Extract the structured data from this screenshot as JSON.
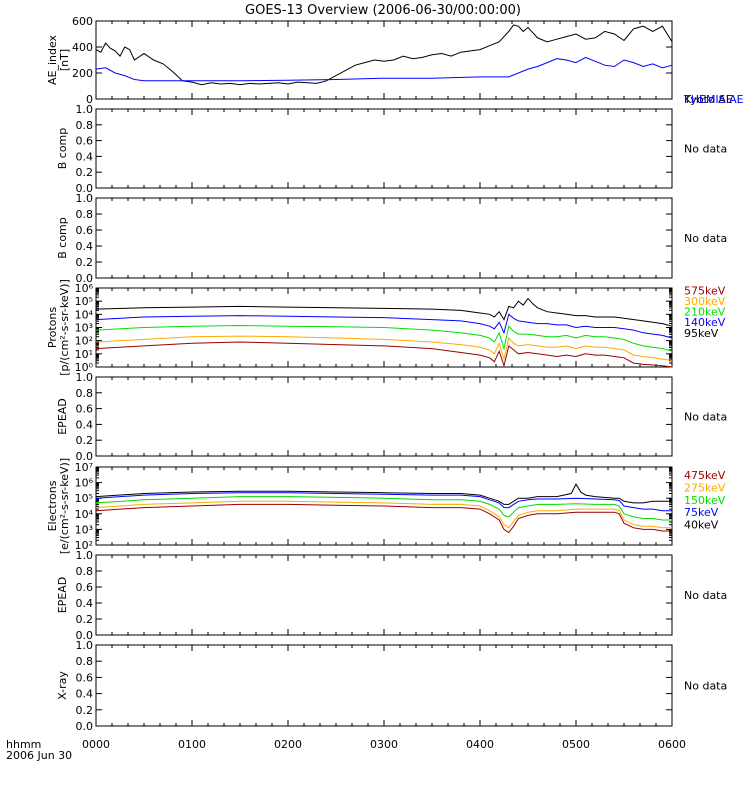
{
  "title": "GOES-13 Overview (2006-06-30/00:00:00)",
  "footer": {
    "time_label": "hhmm",
    "date_label": "2006 Jun 30"
  },
  "colors": {
    "black": "#000000",
    "blue": "#0000ff",
    "green": "#00dd00",
    "orange": "#ffaa00",
    "darkred": "#990000"
  },
  "chart_data": [
    {
      "type": "line",
      "ylabel": "AE_index",
      "unit": "[nT]",
      "x_ticks": [
        "0000",
        "0100",
        "0200",
        "0300",
        "0400",
        "0500",
        "0600"
      ],
      "xlim": [
        0,
        6
      ],
      "ylim": [
        0,
        600
      ],
      "y_ticks": [
        "0",
        "200",
        "400",
        "600"
      ],
      "y_tick_values": [
        0,
        200,
        400,
        600
      ],
      "series": [
        {
          "name": "Kyoto AE",
          "color": "#000000",
          "x": [
            0,
            0.05,
            0.1,
            0.15,
            0.2,
            0.25,
            0.3,
            0.35,
            0.4,
            0.5,
            0.6,
            0.7,
            0.8,
            0.9,
            1.0,
            1.1,
            1.2,
            1.3,
            1.4,
            1.5,
            1.6,
            1.7,
            1.8,
            1.9,
            2.0,
            2.1,
            2.2,
            2.3,
            2.4,
            2.5,
            2.6,
            2.7,
            2.8,
            2.9,
            3.0,
            3.1,
            3.2,
            3.3,
            3.4,
            3.5,
            3.6,
            3.7,
            3.8,
            3.9,
            4.0,
            4.1,
            4.2,
            4.3,
            4.35,
            4.4,
            4.45,
            4.5,
            4.55,
            4.6,
            4.7,
            4.8,
            4.9,
            5.0,
            5.1,
            5.2,
            5.3,
            5.4,
            5.5,
            5.6,
            5.7,
            5.8,
            5.9,
            6.0
          ],
          "y": [
            380,
            360,
            430,
            390,
            370,
            330,
            400,
            380,
            300,
            350,
            300,
            270,
            210,
            140,
            130,
            110,
            125,
            115,
            120,
            110,
            120,
            115,
            120,
            125,
            115,
            130,
            125,
            120,
            140,
            180,
            220,
            260,
            280,
            300,
            290,
            300,
            330,
            310,
            320,
            340,
            350,
            330,
            360,
            370,
            380,
            410,
            440,
            520,
            570,
            560,
            520,
            550,
            510,
            470,
            440,
            460,
            480,
            500,
            460,
            470,
            520,
            500,
            450,
            540,
            560,
            520,
            560,
            440
          ],
          "label_pos": 0.8
        },
        {
          "name": "THEMIS AE",
          "color": "#0000ff",
          "x": [
            0,
            0.1,
            0.2,
            0.3,
            0.4,
            0.5,
            1.0,
            1.5,
            2.0,
            2.5,
            3.0,
            3.5,
            4.0,
            4.3,
            4.4,
            4.5,
            4.6,
            4.7,
            4.8,
            4.9,
            5.0,
            5.1,
            5.2,
            5.3,
            5.4,
            5.5,
            5.6,
            5.7,
            5.8,
            5.9,
            6.0
          ],
          "y": [
            230,
            240,
            200,
            180,
            150,
            140,
            140,
            140,
            145,
            150,
            160,
            160,
            170,
            170,
            200,
            230,
            250,
            280,
            310,
            300,
            280,
            320,
            290,
            260,
            250,
            300,
            280,
            250,
            270,
            240,
            260
          ],
          "label_pos": 0.25
        }
      ]
    },
    {
      "type": "line",
      "ylabel": "B comp",
      "xlim": [
        0,
        6
      ],
      "ylim": [
        0,
        1
      ],
      "y_ticks": [
        "0.0",
        "0.2",
        "0.4",
        "0.6",
        "0.8",
        "1.0"
      ],
      "y_tick_values": [
        0,
        0.2,
        0.4,
        0.6,
        0.8,
        1.0
      ],
      "note": "No data",
      "series": []
    },
    {
      "type": "line",
      "ylabel": "B comp",
      "xlim": [
        0,
        6
      ],
      "ylim": [
        0,
        1
      ],
      "y_ticks": [
        "0.0",
        "0.2",
        "0.4",
        "0.6",
        "0.8",
        "1.0"
      ],
      "y_tick_values": [
        0,
        0.2,
        0.4,
        0.6,
        0.8,
        1.0
      ],
      "note": "No data",
      "series": []
    },
    {
      "type": "line",
      "ylabel": "Protons",
      "unit": "[p/(cm²-s-sr-keV)]",
      "xlim": [
        0,
        6
      ],
      "ylim": [
        0,
        6
      ],
      "log": true,
      "y_ticks": [
        "10⁰",
        "10¹",
        "10²",
        "10³",
        "10⁴",
        "10⁵",
        "10⁶"
      ],
      "y_tick_values": [
        0,
        1,
        2,
        3,
        4,
        5,
        6
      ],
      "series": [
        {
          "name": "575keV",
          "color": "#990000",
          "x": [
            0,
            0.5,
            1,
            1.5,
            2,
            2.5,
            3,
            3.5,
            3.8,
            4.0,
            4.1,
            4.15,
            4.2,
            4.25,
            4.3,
            4.35,
            4.4,
            4.5,
            4.6,
            4.7,
            4.8,
            4.9,
            5.0,
            5.1,
            5.2,
            5.3,
            5.4,
            5.5,
            5.6,
            5.7,
            5.8,
            5.9,
            6.0
          ],
          "y": [
            1.4,
            1.6,
            1.8,
            1.9,
            1.8,
            1.7,
            1.6,
            1.4,
            1.1,
            0.9,
            0.7,
            0.4,
            1.2,
            0.1,
            1.6,
            1.3,
            1.0,
            1.1,
            1.0,
            0.9,
            0.8,
            0.9,
            0.8,
            1.0,
            0.9,
            0.9,
            0.8,
            0.7,
            0.3,
            0.2,
            0.15,
            0.1,
            0.0
          ],
          "label_pos": 5.8
        },
        {
          "name": "300keV",
          "color": "#ffaa00",
          "x": [
            0,
            0.5,
            1,
            1.5,
            2,
            2.5,
            3,
            3.5,
            3.8,
            4.0,
            4.1,
            4.15,
            4.2,
            4.25,
            4.3,
            4.35,
            4.4,
            4.5,
            4.6,
            4.7,
            4.8,
            4.9,
            5.0,
            5.1,
            5.2,
            5.3,
            5.4,
            5.5,
            5.6,
            5.7,
            5.8,
            5.9,
            6.0
          ],
          "y": [
            1.9,
            2.1,
            2.3,
            2.35,
            2.3,
            2.2,
            2.1,
            1.9,
            1.7,
            1.5,
            1.3,
            1.0,
            1.8,
            0.6,
            2.2,
            1.8,
            1.6,
            1.7,
            1.6,
            1.5,
            1.5,
            1.6,
            1.4,
            1.6,
            1.5,
            1.5,
            1.4,
            1.3,
            0.9,
            0.8,
            0.7,
            0.6,
            0.5
          ],
          "label_pos": 5.0
        },
        {
          "name": "210keV",
          "color": "#00dd00",
          "x": [
            0,
            0.5,
            1,
            1.5,
            2,
            2.5,
            3,
            3.5,
            3.8,
            4.0,
            4.1,
            4.15,
            4.2,
            4.25,
            4.3,
            4.35,
            4.4,
            4.5,
            4.6,
            4.7,
            4.8,
            4.9,
            5.0,
            5.1,
            5.2,
            5.3,
            5.4,
            5.5,
            5.6,
            5.7,
            5.8,
            5.9,
            6.0
          ],
          "y": [
            2.8,
            3.0,
            3.1,
            3.15,
            3.1,
            3.05,
            3.0,
            2.8,
            2.6,
            2.4,
            2.2,
            1.9,
            2.6,
            1.4,
            3.1,
            2.7,
            2.5,
            2.5,
            2.4,
            2.3,
            2.3,
            2.4,
            2.2,
            2.4,
            2.3,
            2.3,
            2.2,
            2.1,
            1.8,
            1.6,
            1.5,
            1.4,
            1.2
          ],
          "label_pos": 4.2
        },
        {
          "name": "140keV",
          "color": "#0000ff",
          "x": [
            0,
            0.5,
            1,
            1.5,
            2,
            2.5,
            3,
            3.5,
            3.8,
            4.0,
            4.1,
            4.15,
            4.2,
            4.25,
            4.3,
            4.35,
            4.4,
            4.5,
            4.6,
            4.7,
            4.8,
            4.9,
            5.0,
            5.1,
            5.2,
            5.3,
            5.4,
            5.5,
            5.6,
            5.7,
            5.8,
            5.9,
            6.0
          ],
          "y": [
            3.6,
            3.8,
            3.85,
            3.9,
            3.85,
            3.8,
            3.75,
            3.6,
            3.5,
            3.3,
            3.1,
            2.9,
            3.4,
            2.6,
            4.0,
            3.7,
            3.5,
            3.4,
            3.3,
            3.3,
            3.2,
            3.2,
            3.0,
            3.1,
            3.0,
            3.0,
            3.0,
            2.9,
            2.8,
            2.6,
            2.5,
            2.4,
            2.2
          ],
          "label_pos": 3.4
        },
        {
          "name": "95keV",
          "color": "#000000",
          "x": [
            0,
            0.5,
            1,
            1.5,
            2,
            2.5,
            3,
            3.5,
            3.8,
            4.0,
            4.1,
            4.15,
            4.2,
            4.25,
            4.3,
            4.35,
            4.4,
            4.45,
            4.5,
            4.55,
            4.6,
            4.7,
            4.8,
            4.9,
            5.0,
            5.1,
            5.2,
            5.3,
            5.4,
            5.5,
            5.6,
            5.7,
            5.8,
            5.9,
            6.0
          ],
          "y": [
            4.4,
            4.5,
            4.55,
            4.6,
            4.55,
            4.5,
            4.45,
            4.4,
            4.3,
            4.1,
            4.0,
            3.8,
            4.2,
            3.6,
            4.6,
            4.5,
            5.0,
            4.7,
            5.2,
            4.8,
            4.5,
            4.2,
            4.1,
            4.0,
            3.9,
            3.9,
            3.8,
            3.8,
            3.8,
            3.7,
            3.6,
            3.5,
            3.4,
            3.3,
            3.1
          ],
          "label_pos": 2.6
        }
      ]
    },
    {
      "type": "line",
      "ylabel": "EPEAD",
      "xlim": [
        0,
        6
      ],
      "ylim": [
        0,
        1
      ],
      "y_ticks": [
        "0.0",
        "0.2",
        "0.4",
        "0.6",
        "0.8",
        "1.0"
      ],
      "y_tick_values": [
        0,
        0.2,
        0.4,
        0.6,
        0.8,
        1.0
      ],
      "note": "No data",
      "series": []
    },
    {
      "type": "line",
      "ylabel": "Electrons",
      "unit": "[e/(cm²-s-sr-keV)]",
      "xlim": [
        0,
        6
      ],
      "ylim": [
        2,
        7
      ],
      "log": true,
      "y_ticks": [
        "10²",
        "10³",
        "10⁴",
        "10⁵",
        "10⁶",
        "10⁷"
      ],
      "y_tick_values": [
        2,
        3,
        4,
        5,
        6,
        7
      ],
      "series": [
        {
          "name": "475keV",
          "color": "#990000",
          "x": [
            0,
            0.5,
            1,
            1.5,
            2,
            2.5,
            3,
            3.5,
            3.8,
            4.0,
            4.1,
            4.2,
            4.25,
            4.3,
            4.35,
            4.4,
            4.5,
            4.6,
            4.8,
            5.0,
            5.2,
            5.4,
            5.45,
            5.5,
            5.6,
            5.7,
            5.8,
            5.9,
            6.0
          ],
          "y": [
            4.2,
            4.4,
            4.5,
            4.6,
            4.6,
            4.55,
            4.5,
            4.4,
            4.4,
            4.3,
            4.0,
            3.6,
            3.0,
            2.8,
            3.2,
            3.7,
            3.9,
            4.0,
            4.0,
            4.1,
            4.1,
            4.1,
            4.0,
            3.4,
            3.1,
            3.0,
            3.0,
            2.9,
            2.9
          ],
          "label_pos": 6.5
        },
        {
          "name": "275keV",
          "color": "#ffaa00",
          "x": [
            0,
            0.5,
            1,
            1.5,
            2,
            2.5,
            3,
            3.5,
            3.8,
            4.0,
            4.1,
            4.2,
            4.25,
            4.3,
            4.35,
            4.4,
            4.5,
            4.6,
            4.8,
            5.0,
            5.2,
            5.4,
            5.45,
            5.5,
            5.6,
            5.7,
            5.8,
            5.9,
            6.0
          ],
          "y": [
            4.4,
            4.6,
            4.7,
            4.8,
            4.8,
            4.75,
            4.7,
            4.6,
            4.6,
            4.5,
            4.2,
            3.8,
            3.3,
            3.1,
            3.5,
            3.9,
            4.1,
            4.2,
            4.2,
            4.3,
            4.3,
            4.3,
            4.2,
            3.6,
            3.3,
            3.2,
            3.2,
            3.1,
            3.1
          ],
          "label_pos": 5.7
        },
        {
          "name": "150keV",
          "color": "#00dd00",
          "x": [
            0,
            0.5,
            1,
            1.5,
            2,
            2.5,
            3,
            3.5,
            3.8,
            4.0,
            4.1,
            4.2,
            4.25,
            4.3,
            4.35,
            4.4,
            4.5,
            4.6,
            4.8,
            5.0,
            5.2,
            5.4,
            5.45,
            5.5,
            5.6,
            5.7,
            5.8,
            5.9,
            6.0
          ],
          "y": [
            4.7,
            4.9,
            5.0,
            5.1,
            5.1,
            5.05,
            5.0,
            4.9,
            4.9,
            4.8,
            4.6,
            4.3,
            3.9,
            3.8,
            4.1,
            4.4,
            4.5,
            4.6,
            4.6,
            4.65,
            4.6,
            4.6,
            4.5,
            4.0,
            3.8,
            3.7,
            3.7,
            3.6,
            3.6
          ],
          "label_pos": 4.9
        },
        {
          "name": "75keV",
          "color": "#0000ff",
          "x": [
            0,
            0.5,
            1,
            1.5,
            2,
            2.5,
            3,
            3.5,
            3.8,
            4.0,
            4.1,
            4.2,
            4.25,
            4.3,
            4.35,
            4.4,
            4.5,
            4.6,
            4.8,
            5.0,
            5.2,
            5.4,
            5.45,
            5.5,
            5.6,
            5.7,
            5.8,
            5.9,
            6.0
          ],
          "y": [
            5.0,
            5.2,
            5.3,
            5.35,
            5.35,
            5.3,
            5.25,
            5.2,
            5.2,
            5.1,
            4.9,
            4.7,
            4.4,
            4.4,
            4.6,
            4.8,
            4.9,
            4.95,
            4.95,
            5.0,
            4.95,
            4.9,
            4.85,
            4.5,
            4.4,
            4.3,
            4.3,
            4.2,
            4.2
          ],
          "label_pos": 4.1
        },
        {
          "name": "40keV",
          "color": "#000000",
          "x": [
            0,
            0.5,
            1,
            1.5,
            2,
            2.5,
            3,
            3.5,
            3.8,
            4.0,
            4.1,
            4.2,
            4.25,
            4.3,
            4.35,
            4.4,
            4.5,
            4.6,
            4.8,
            4.95,
            5.0,
            5.05,
            5.1,
            5.2,
            5.4,
            5.45,
            5.5,
            5.6,
            5.7,
            5.8,
            5.9,
            6.0
          ],
          "y": [
            5.1,
            5.3,
            5.4,
            5.45,
            5.45,
            5.4,
            5.35,
            5.3,
            5.3,
            5.2,
            5.0,
            4.8,
            4.6,
            4.6,
            4.8,
            5.0,
            5.0,
            5.1,
            5.1,
            5.3,
            5.9,
            5.4,
            5.2,
            5.1,
            5.0,
            5.0,
            4.8,
            4.7,
            4.7,
            4.8,
            4.8,
            4.8
          ],
          "label_pos": 3.3
        }
      ]
    },
    {
      "type": "line",
      "ylabel": "EPEAD",
      "xlim": [
        0,
        6
      ],
      "ylim": [
        0,
        1
      ],
      "y_ticks": [
        "0.0",
        "0.2",
        "0.4",
        "0.6",
        "0.8",
        "1.0"
      ],
      "y_tick_values": [
        0,
        0.2,
        0.4,
        0.6,
        0.8,
        1.0
      ],
      "note": "No data",
      "series": []
    },
    {
      "type": "line",
      "ylabel": "X-ray",
      "xlim": [
        0,
        6
      ],
      "ylim": [
        0,
        1
      ],
      "y_ticks": [
        "0.0",
        "0.2",
        "0.4",
        "0.6",
        "0.8",
        "1.0"
      ],
      "y_tick_values": [
        0,
        0.2,
        0.4,
        0.6,
        0.8,
        1.0
      ],
      "note": "No data",
      "series": []
    }
  ]
}
